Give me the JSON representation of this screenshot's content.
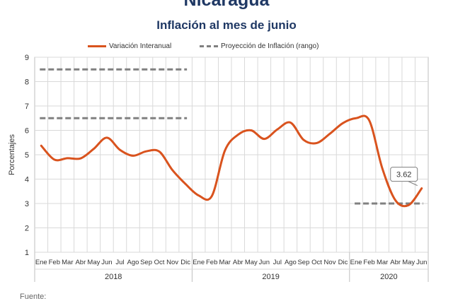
{
  "header": {
    "country": "Nicaragua",
    "subtitle": "Inflación al mes de junio"
  },
  "legend": {
    "series1": "Variación Interanual",
    "series2": "Proyección de Inflación (rango)"
  },
  "source_label": "Fuente:",
  "colors": {
    "line": "#d9531e",
    "projection": "#808080",
    "title": "#1f3864"
  },
  "chart_data": {
    "type": "line",
    "ylabel": "Porcentajes",
    "ylim": [
      1,
      9
    ],
    "yticks": [
      "1",
      "2",
      "3",
      "4",
      "5",
      "6",
      "7",
      "8",
      "9"
    ],
    "grid": true,
    "legend_position": "top",
    "x": [
      "Ene",
      "Feb",
      "Mar",
      "Abr",
      "May",
      "Jun",
      "Jul",
      "Ago",
      "Sep",
      "Oct",
      "Nov",
      "Dic",
      "Ene",
      "Feb",
      "Mar",
      "Abr",
      "May",
      "Jun",
      "Jul",
      "Ago",
      "Sep",
      "Oct",
      "Nov",
      "Dic",
      "Ene",
      "Feb",
      "Mar",
      "Abr",
      "May",
      "Jun"
    ],
    "year_groups": [
      {
        "label": "2018",
        "start": 0,
        "end": 11
      },
      {
        "label": "2019",
        "start": 12,
        "end": 23
      },
      {
        "label": "2020",
        "start": 24,
        "end": 29
      }
    ],
    "series": [
      {
        "name": "Variación Interanual",
        "values": [
          5.37,
          4.8,
          4.86,
          4.85,
          5.24,
          5.7,
          5.2,
          4.96,
          5.14,
          5.13,
          4.37,
          3.8,
          3.33,
          3.3,
          5.17,
          5.82,
          6.0,
          5.65,
          6.04,
          6.32,
          5.61,
          5.48,
          5.86,
          6.3,
          6.5,
          6.41,
          4.44,
          3.13,
          2.93,
          3.62
        ]
      }
    ],
    "projection_ranges": [
      {
        "name": "Proyección de Inflación (rango)",
        "start": 0,
        "end": 11,
        "values": [
          6.5,
          8.5
        ]
      },
      {
        "name": "Proyección de Inflación (rango)",
        "start": 24,
        "end": 29,
        "values": [
          3.0
        ]
      }
    ],
    "annotations": [
      {
        "index": 29,
        "text": "3.62"
      }
    ]
  }
}
